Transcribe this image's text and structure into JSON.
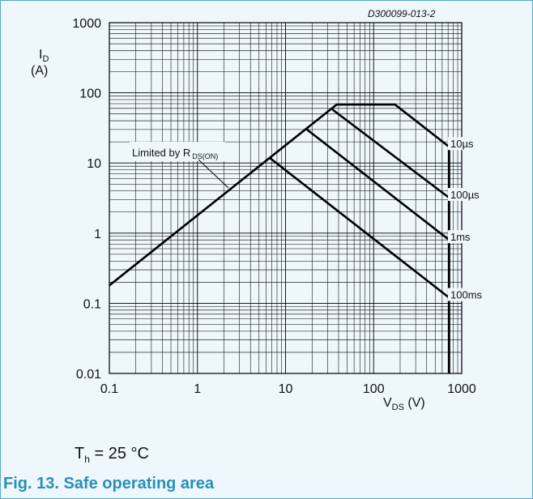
{
  "figure": {
    "caption": "Fig. 13. Safe operating area",
    "condition_symbol": "T",
    "condition_subscript": "h",
    "condition_value": " = 25 °C",
    "doc_code": "D300099-013-2"
  },
  "chart_data": {
    "type": "line",
    "x_scale": "log",
    "y_scale": "log",
    "xlim": [
      0.1,
      1000
    ],
    "ylim": [
      0.01,
      1000
    ],
    "grid": true,
    "xlabel": {
      "main": "V",
      "sub": "DS",
      "unit": "(V)"
    },
    "ylabel": {
      "main": "I",
      "sub": "D",
      "unit": "(A)"
    },
    "x_ticks": [
      0.1,
      1,
      10,
      100,
      1000
    ],
    "x_tick_labels": [
      "0.1",
      "1",
      "10",
      "100",
      "1000"
    ],
    "y_ticks": [
      0.01,
      0.1,
      1,
      10,
      100,
      1000
    ],
    "y_tick_labels": [
      "0.01",
      "0.1",
      "1",
      "10",
      "100",
      "1000"
    ],
    "annotation": {
      "main": "Limited by R",
      "sub": "DS(ON)"
    },
    "series": [
      {
        "name": "10µs",
        "x": [
          0.1,
          38,
          175,
          720,
          720
        ],
        "y": [
          0.18,
          68,
          68,
          17,
          0.01
        ]
      },
      {
        "name": "100µs",
        "x": [
          34,
          720
        ],
        "y": [
          58,
          3.2
        ]
      },
      {
        "name": "1ms",
        "x": [
          17.5,
          720
        ],
        "y": [
          30,
          0.8
        ]
      },
      {
        "name": "100ms",
        "x": [
          6.5,
          720
        ],
        "y": [
          12,
          0.12
        ]
      }
    ],
    "boundary": {
      "rds_on": {
        "x": [
          0.1,
          38
        ],
        "y": [
          0.18,
          68
        ]
      },
      "current_limit": {
        "x": [
          38,
          720
        ],
        "y": [
          68,
          68
        ]
      },
      "voltage_limit": {
        "x": [
          720,
          720
        ],
        "y": [
          68,
          0.01
        ]
      }
    }
  }
}
